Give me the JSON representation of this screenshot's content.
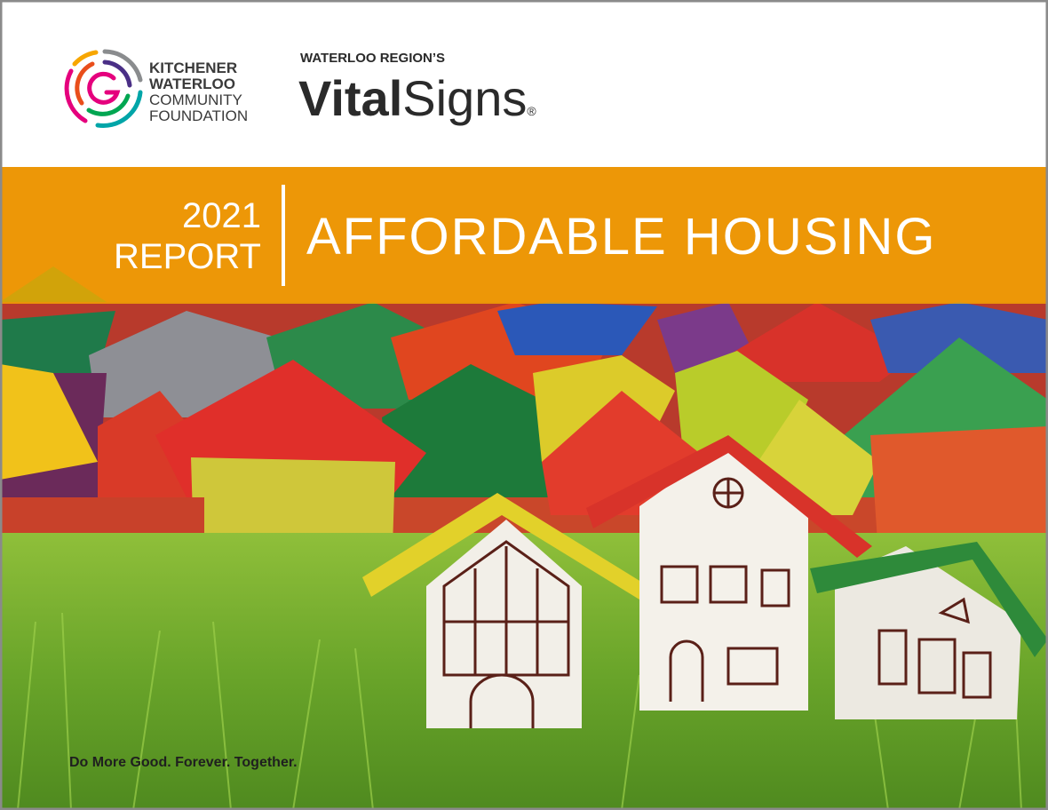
{
  "header": {
    "logo_lines": [
      "KITCHENER",
      "WATERLOO",
      "COMMUNITY",
      "FOUNDATION"
    ],
    "kicker": "WATERLOO REGION’S",
    "brand_bold": "Vital",
    "brand_regular": "Signs",
    "brand_mark": "®"
  },
  "banner": {
    "year": "2021",
    "label": "REPORT",
    "title": "AFFORDABLE HOUSING"
  },
  "footer": {
    "tagline": "Do More Good. Forever. Together."
  }
}
